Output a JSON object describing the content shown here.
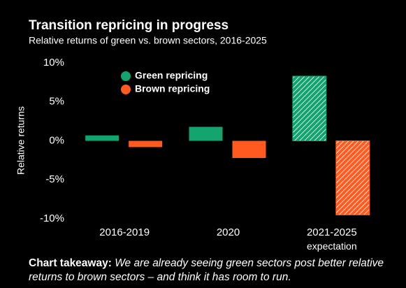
{
  "chart_data": {
    "type": "bar",
    "title": "Transition repricing in progress",
    "subtitle": "Relative returns of green vs. brown sectors, 2016-2025",
    "ylabel": "Relative returns",
    "categories": [
      "2016-2019",
      "2020",
      "2021-2025 expectation"
    ],
    "series": [
      {
        "name": "Green repricing",
        "color": "#12a36f",
        "values": [
          0.7,
          1.8,
          8.3
        ]
      },
      {
        "name": "Brown repricing",
        "color": "#ff5a1f",
        "values": [
          -0.8,
          -2.2,
          -9.5
        ]
      }
    ],
    "hatched_categories": [
      2
    ],
    "ylim": [
      -10,
      10
    ],
    "yticks": [
      {
        "value": 10,
        "label": "10%"
      },
      {
        "value": 5,
        "label": "5%"
      },
      {
        "value": 0,
        "label": "0%"
      },
      {
        "value": -5,
        "label": "-5%"
      },
      {
        "value": -10,
        "label": "-10%"
      }
    ],
    "grid": false,
    "legend": "top-left"
  },
  "takeaway": {
    "label": "Chart takeaway:",
    "text": "We are already seeing green sectors post better relative returns to brown sectors – and think it has room to run."
  }
}
